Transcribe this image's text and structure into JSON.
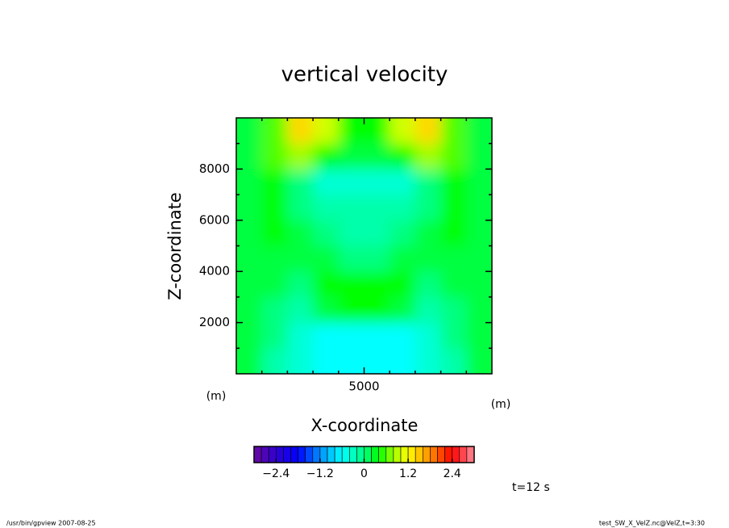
{
  "chart_data": {
    "type": "heatmap",
    "title": "vertical velocity",
    "x_label": "X-coordinate",
    "y_label": "Z-coordinate",
    "x_unit": "(m)",
    "y_unit": "(m)",
    "xlim": [
      0,
      10000
    ],
    "ylim": [
      0,
      10000
    ],
    "xticks": [
      5000
    ],
    "yticks": [
      2000,
      4000,
      6000,
      8000
    ],
    "xminorticks": [
      1000,
      2000,
      3000,
      4000,
      6000,
      7000,
      8000,
      9000
    ],
    "yminorticks": [
      1000,
      3000,
      5000,
      7000,
      9000
    ],
    "x": [
      500,
      1500,
      2500,
      3500,
      4500,
      5500,
      6500,
      7500,
      8500,
      9500
    ],
    "y": [
      500,
      1500,
      2500,
      3500,
      4500,
      5500,
      6500,
      7500,
      8500,
      9500
    ],
    "values": [
      [
        0.2,
        -0.2,
        -0.4,
        -0.6,
        -0.6,
        -0.6,
        -0.6,
        -0.4,
        -0.2,
        0.2
      ],
      [
        0.2,
        0,
        -0.4,
        -0.6,
        -0.6,
        -0.6,
        -0.6,
        -0.4,
        0,
        0.2
      ],
      [
        0.2,
        0,
        -0.2,
        0.2,
        0.4,
        0.4,
        0.2,
        -0.2,
        0,
        0.2
      ],
      [
        0.2,
        0.2,
        0,
        0.4,
        0.4,
        0.4,
        0.4,
        0,
        0.2,
        0.2
      ],
      [
        0.2,
        0.2,
        0.2,
        0.2,
        0,
        0,
        0.2,
        0.2,
        0.2,
        0.2
      ],
      [
        0.2,
        0.4,
        0.2,
        0,
        -0.2,
        -0.2,
        0,
        0.2,
        0.4,
        0.2
      ],
      [
        0.2,
        0.4,
        0,
        -0.2,
        -0.2,
        -0.2,
        -0.2,
        0,
        0.4,
        0.2
      ],
      [
        0.2,
        0.4,
        0,
        -0.4,
        -0.4,
        -0.4,
        -0.4,
        0,
        0.4,
        0.2
      ],
      [
        0.2,
        0.6,
        0.8,
        0.4,
        0.2,
        0.2,
        0.4,
        0.8,
        0.6,
        0.2
      ],
      [
        0.2,
        0.6,
        1.4,
        1.0,
        0.4,
        0.4,
        1.0,
        1.4,
        0.6,
        0.2
      ]
    ],
    "colorbar": {
      "clim": [
        -3,
        3
      ],
      "levels": 30,
      "ticks": [
        -2.4,
        -1.2,
        0,
        1.2,
        2.4
      ],
      "tick_labels": [
        "−2.4",
        "−1.2",
        "0",
        "1.2",
        "2.4"
      ],
      "colormap": [
        [
          -3,
          "#6a0aa0"
        ],
        [
          -2.4,
          "#3000d0"
        ],
        [
          -1.8,
          "#0000ff"
        ],
        [
          -1.2,
          "#0090ff"
        ],
        [
          -0.6,
          "#00ffff"
        ],
        [
          0,
          "#00ff80"
        ],
        [
          0.4,
          "#00ff00"
        ],
        [
          0.8,
          "#a0ff00"
        ],
        [
          1.2,
          "#ffff00"
        ],
        [
          1.8,
          "#ff8c00"
        ],
        [
          2.4,
          "#ff0000"
        ],
        [
          3,
          "#ff8c9c"
        ]
      ]
    },
    "annotation": "t=12 s",
    "footer_left": "/usr/bin/gpview  2007-08-25",
    "footer_right": "test_SW_X_VelZ.nc@VelZ,t=3:30"
  }
}
